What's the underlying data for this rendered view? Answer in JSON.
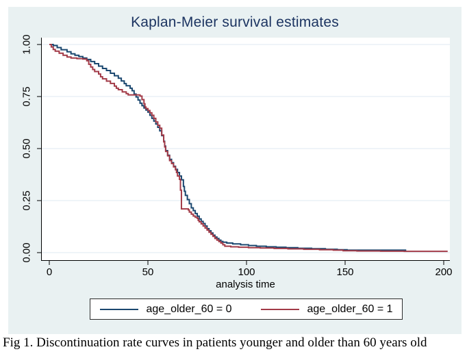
{
  "page": {
    "caption": "Fig 1. Discontinuation rate curves in patients younger and older than 60 years old"
  },
  "colors": {
    "figure_background": "#e9f1f2",
    "plot_background": "#ffffff",
    "title_text": "#1c3461",
    "axis_line": "#000000",
    "grid_line": "#dfe9f1",
    "legend_border": "#2b2b2b"
  },
  "chart_data": {
    "type": "line",
    "step": true,
    "title": "Kaplan-Meier survival estimates",
    "xlabel": "analysis time",
    "ylabel": "",
    "xlim": [
      0,
      200
    ],
    "ylim": [
      0,
      1
    ],
    "grid": "horizontal",
    "legend_position": "bottom",
    "x_ticks": [
      {
        "value": 0,
        "label": "0"
      },
      {
        "value": 50,
        "label": "50"
      },
      {
        "value": 100,
        "label": "100"
      },
      {
        "value": 150,
        "label": "150"
      },
      {
        "value": 200,
        "label": "200"
      }
    ],
    "y_ticks": [
      {
        "value": 0.0,
        "label": "0.00"
      },
      {
        "value": 0.25,
        "label": "0.25"
      },
      {
        "value": 0.5,
        "label": "0.50"
      },
      {
        "value": 0.75,
        "label": "0.75"
      },
      {
        "value": 1.0,
        "label": "1.00"
      }
    ],
    "series": [
      {
        "name": "age_older_60 = 0",
        "color": "#1a476f",
        "points": [
          [
            0,
            1.0
          ],
          [
            2,
            0.995
          ],
          [
            4,
            0.985
          ],
          [
            6,
            0.975
          ],
          [
            9,
            0.965
          ],
          [
            11,
            0.955
          ],
          [
            13,
            0.948
          ],
          [
            15,
            0.942
          ],
          [
            17,
            0.935
          ],
          [
            19,
            0.928
          ],
          [
            21,
            0.918
          ],
          [
            23,
            0.908
          ],
          [
            25,
            0.896
          ],
          [
            27,
            0.885
          ],
          [
            29,
            0.875
          ],
          [
            31,
            0.862
          ],
          [
            33,
            0.85
          ],
          [
            35,
            0.838
          ],
          [
            36.5,
            0.825
          ],
          [
            38,
            0.812
          ],
          [
            39,
            0.802
          ],
          [
            41,
            0.79
          ],
          [
            42,
            0.778
          ],
          [
            43,
            0.762
          ],
          [
            44,
            0.748
          ],
          [
            45,
            0.733
          ],
          [
            46,
            0.718
          ],
          [
            47,
            0.706
          ],
          [
            48,
            0.695
          ],
          [
            49,
            0.685
          ],
          [
            50,
            0.675
          ],
          [
            51,
            0.66
          ],
          [
            52,
            0.645
          ],
          [
            53,
            0.632
          ],
          [
            54,
            0.618
          ],
          [
            55,
            0.602
          ],
          [
            56,
            0.585
          ],
          [
            57,
            0.562
          ],
          [
            58,
            0.535
          ],
          [
            58.5,
            0.512
          ],
          [
            59,
            0.49
          ],
          [
            60,
            0.468
          ],
          [
            61,
            0.448
          ],
          [
            62,
            0.432
          ],
          [
            63,
            0.415
          ],
          [
            64,
            0.4
          ],
          [
            65,
            0.385
          ],
          [
            66,
            0.368
          ],
          [
            67,
            0.35
          ],
          [
            68,
            0.318
          ],
          [
            68.5,
            0.295
          ],
          [
            69,
            0.275
          ],
          [
            70,
            0.255
          ],
          [
            71,
            0.235
          ],
          [
            72,
            0.215
          ],
          [
            73,
            0.202
          ],
          [
            74,
            0.188
          ],
          [
            75,
            0.175
          ],
          [
            76,
            0.162
          ],
          [
            77,
            0.15
          ],
          [
            78,
            0.14
          ],
          [
            79,
            0.128
          ],
          [
            80,
            0.115
          ],
          [
            81,
            0.105
          ],
          [
            82,
            0.094
          ],
          [
            83,
            0.084
          ],
          [
            84,
            0.075
          ],
          [
            85,
            0.068
          ],
          [
            86,
            0.06
          ],
          [
            87,
            0.054
          ],
          [
            88,
            0.05
          ],
          [
            90,
            0.046
          ],
          [
            93,
            0.042
          ],
          [
            97,
            0.038
          ],
          [
            101,
            0.034
          ],
          [
            105,
            0.031
          ],
          [
            110,
            0.028
          ],
          [
            115,
            0.026
          ],
          [
            120,
            0.024
          ],
          [
            126,
            0.021
          ],
          [
            133,
            0.019
          ],
          [
            140,
            0.016
          ],
          [
            146,
            0.014
          ],
          [
            151,
            0.012
          ],
          [
            160,
            0.012
          ],
          [
            181,
            0.012
          ]
        ]
      },
      {
        "name": "age_older_60 = 1",
        "color": "#a23a47",
        "points": [
          [
            0,
            1.0
          ],
          [
            1,
            0.988
          ],
          [
            2,
            0.976
          ],
          [
            3,
            0.968
          ],
          [
            5,
            0.958
          ],
          [
            7,
            0.948
          ],
          [
            9,
            0.94
          ],
          [
            11,
            0.935
          ],
          [
            14,
            0.932
          ],
          [
            17,
            0.93
          ],
          [
            19,
            0.922
          ],
          [
            20,
            0.905
          ],
          [
            21,
            0.892
          ],
          [
            22,
            0.88
          ],
          [
            23,
            0.87
          ],
          [
            25,
            0.858
          ],
          [
            26,
            0.845
          ],
          [
            27,
            0.835
          ],
          [
            29,
            0.824
          ],
          [
            31,
            0.813
          ],
          [
            33,
            0.8
          ],
          [
            34,
            0.79
          ],
          [
            35,
            0.783
          ],
          [
            37,
            0.772
          ],
          [
            39,
            0.764
          ],
          [
            40,
            0.758
          ],
          [
            46,
            0.752
          ],
          [
            47,
            0.735
          ],
          [
            48,
            0.715
          ],
          [
            48.5,
            0.7
          ],
          [
            49,
            0.692
          ],
          [
            50,
            0.683
          ],
          [
            51,
            0.672
          ],
          [
            52,
            0.66
          ],
          [
            53,
            0.645
          ],
          [
            54,
            0.628
          ],
          [
            55,
            0.612
          ],
          [
            56,
            0.598
          ],
          [
            57,
            0.565
          ],
          [
            58,
            0.532
          ],
          [
            58.5,
            0.508
          ],
          [
            59,
            0.486
          ],
          [
            60,
            0.465
          ],
          [
            61,
            0.442
          ],
          [
            62,
            0.428
          ],
          [
            63,
            0.412
          ],
          [
            64,
            0.398
          ],
          [
            64.5,
            0.385
          ],
          [
            65,
            0.368
          ],
          [
            66,
            0.352
          ],
          [
            66.5,
            0.3
          ],
          [
            67,
            0.21
          ],
          [
            70.5,
            0.205
          ],
          [
            71,
            0.195
          ],
          [
            72,
            0.185
          ],
          [
            73,
            0.176
          ],
          [
            74,
            0.17
          ],
          [
            75,
            0.165
          ],
          [
            75.5,
            0.155
          ],
          [
            76,
            0.148
          ],
          [
            77,
            0.138
          ],
          [
            78,
            0.128
          ],
          [
            79,
            0.118
          ],
          [
            80,
            0.108
          ],
          [
            81,
            0.098
          ],
          [
            82,
            0.088
          ],
          [
            83,
            0.078
          ],
          [
            84,
            0.068
          ],
          [
            85,
            0.06
          ],
          [
            86,
            0.053
          ],
          [
            87,
            0.046
          ],
          [
            88,
            0.038
          ],
          [
            89,
            0.031
          ],
          [
            92,
            0.028
          ],
          [
            96,
            0.026
          ],
          [
            101,
            0.024
          ],
          [
            107,
            0.022
          ],
          [
            114,
            0.02
          ],
          [
            121,
            0.018
          ],
          [
            129,
            0.016
          ],
          [
            137,
            0.014
          ],
          [
            144,
            0.012
          ],
          [
            149,
            0.009
          ],
          [
            156,
            0.008
          ],
          [
            168,
            0.007
          ],
          [
            180,
            0.006
          ],
          [
            202,
            0.006
          ]
        ]
      }
    ]
  }
}
